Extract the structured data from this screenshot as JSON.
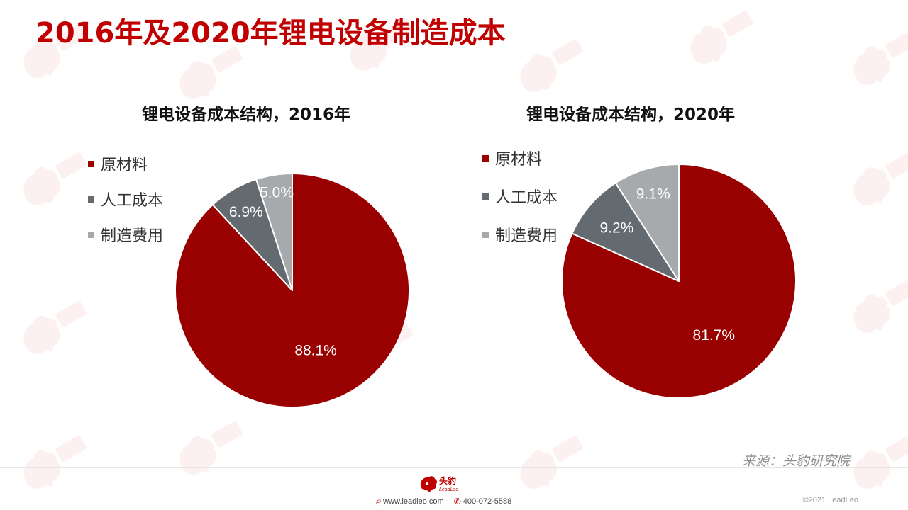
{
  "title": "2016年及2020年锂电设备制造成本",
  "colors": {
    "title": "#c00000",
    "materials": "#990000",
    "labor": "#636a70",
    "manufacturing": "#a6aaad"
  },
  "chart_data": [
    {
      "type": "pie",
      "title": "锂电设备成本结构，2016年",
      "labels": [
        "原材料",
        "人工成本",
        "制造费用"
      ],
      "values": [
        88.1,
        6.9,
        5.0
      ],
      "value_labels": [
        "88.1%",
        "6.9%",
        "5.0%"
      ],
      "colors": [
        "#990000",
        "#636a70",
        "#a6aaad"
      ],
      "legend_position": "left"
    },
    {
      "type": "pie",
      "title": "锂电设备成本结构，2020年",
      "labels": [
        "原材料",
        "人工成本",
        "制造费用"
      ],
      "values": [
        81.7,
        9.2,
        9.1
      ],
      "value_labels": [
        "81.7%",
        "9.2%",
        "9.1%"
      ],
      "colors": [
        "#990000",
        "#636a70",
        "#a6aaad"
      ],
      "legend_position": "left"
    }
  ],
  "source": "来源：头豹研究院",
  "footer": {
    "logo_text": "头豹",
    "logo_sub": "LeadLeo",
    "website": "www.leadleo.com",
    "phone": "400-072-5588",
    "copyright": "©2021 LeadLeo"
  }
}
